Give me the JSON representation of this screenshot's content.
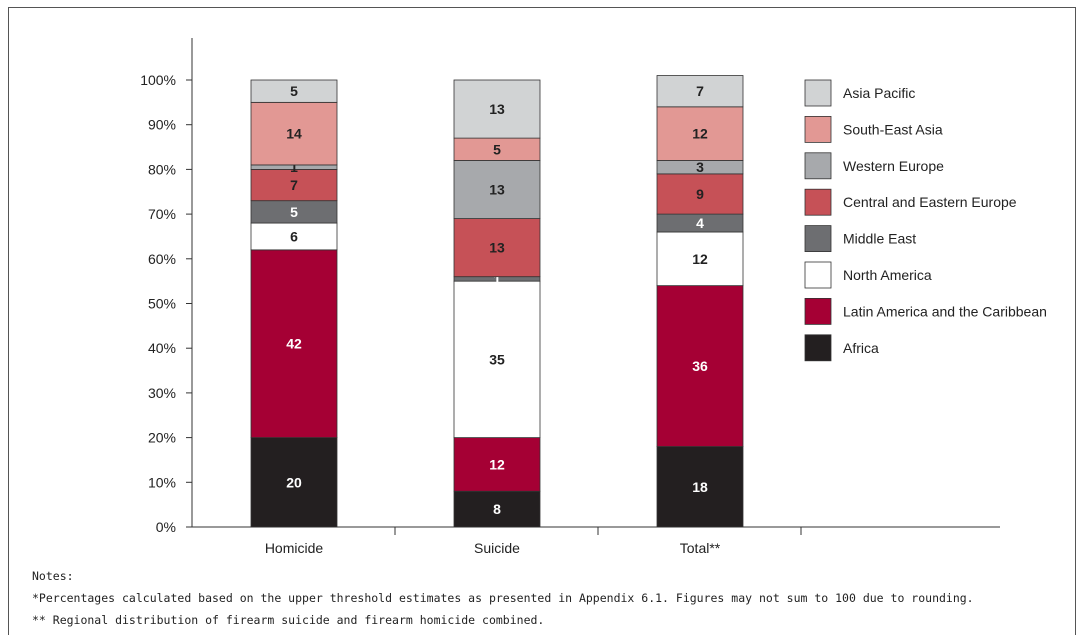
{
  "chart_data": {
    "type": "bar",
    "stacked": true,
    "title": "",
    "xlabel": "",
    "ylabel": "",
    "ylim": [
      0,
      100
    ],
    "yticks": [
      "0%",
      "10%",
      "20%",
      "30%",
      "40%",
      "50%",
      "60%",
      "70%",
      "80%",
      "90%",
      "100%"
    ],
    "categories": [
      "Homicide",
      "Suicide",
      "Total**"
    ],
    "series": [
      {
        "name": "Africa",
        "color": "#231f20",
        "label_color": "#ffffff",
        "values": [
          20,
          8,
          18
        ]
      },
      {
        "name": "Latin America and the Caribbean",
        "color": "#a50034",
        "label_color": "#ffffff",
        "values": [
          42,
          12,
          36
        ]
      },
      {
        "name": "North America",
        "color": "#ffffff",
        "label_color": "#222222",
        "values": [
          6,
          35,
          12
        ]
      },
      {
        "name": "Middle East",
        "color": "#6d6e71",
        "label_color": "#ffffff",
        "values": [
          5,
          1,
          4
        ]
      },
      {
        "name": "Central and Eastern Europe",
        "color": "#c65157",
        "label_color": "#222222",
        "values": [
          7,
          13,
          9
        ]
      },
      {
        "name": "Western Europe",
        "color": "#a7a9ac",
        "label_color": "#222222",
        "values": [
          1,
          13,
          3
        ]
      },
      {
        "name": "South-East Asia",
        "color": "#e29894",
        "label_color": "#222222",
        "values": [
          14,
          5,
          12
        ]
      },
      {
        "name": "Asia Pacific",
        "color": "#d1d3d4",
        "label_color": "#222222",
        "values": [
          5,
          13,
          7
        ]
      }
    ],
    "grid": false,
    "legend_position": "right"
  },
  "notes": {
    "heading": "Notes:",
    "line1": "*Percentages calculated based on the upper threshold estimates as presented in Appendix 6.1. Figures may not sum to 100 due to rounding.",
    "line2": "** Regional distribution of firearm suicide and firearm homicide combined."
  }
}
